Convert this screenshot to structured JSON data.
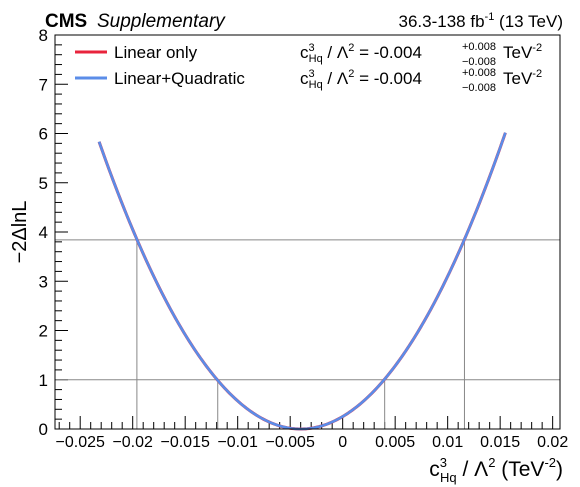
{
  "header": {
    "experiment": "CMS",
    "label": "Supplementary",
    "lumi_prefix": "36.3-138 fb",
    "lumi_exp": "-1",
    "lumi_suffix": "(13 TeV)"
  },
  "legend": {
    "placement": "top-left",
    "entries": [
      {
        "label": "Linear only",
        "color": "#e8243c",
        "result": {
          "coef": "c",
          "sup": "3",
          "sub": "Hq",
          "mid": " / Λ",
          "mid_sup": "2",
          "eq": " = -0.004",
          "up": "+0.008",
          "down": "−0.008",
          "unit": " TeV",
          "unit_sup": "-2"
        }
      },
      {
        "label": "Linear+Quadratic",
        "color": "#5b8de8",
        "result": {
          "coef": "c",
          "sup": "3",
          "sub": "Hq",
          "mid": " / Λ",
          "mid_sup": "2",
          "eq": " = -0.004",
          "up": "+0.008",
          "down": "−0.008",
          "unit": " TeV",
          "unit_sup": "-2"
        }
      }
    ]
  },
  "axes": {
    "ylabel": "−2ΔlnL",
    "xlabel": {
      "coef": "c",
      "sup": "3",
      "sub": "Hq",
      "mid": " / Λ",
      "mid_sup": "2",
      "unit": " (TeV",
      "unit_sup": "-2",
      "close": ")"
    },
    "xticks": [
      "−0.025",
      "−0.02",
      "−0.015",
      "−0.01",
      "−0.005",
      "0",
      "0.005",
      "0.01",
      "0.015",
      "0.02"
    ]
  },
  "chart_data": {
    "type": "line",
    "xlim": [
      -0.0274,
      0.0207
    ],
    "ylim": [
      0,
      8
    ],
    "grid": false,
    "y_major_ticks": [
      0,
      1,
      2,
      3,
      4,
      5,
      6,
      7,
      8
    ],
    "x_major_ticks": [
      -0.025,
      -0.02,
      -0.015,
      -0.01,
      -0.005,
      0,
      0.005,
      0.01,
      0.015,
      0.02
    ],
    "best_fit": -0.004,
    "series": [
      {
        "name": "Linear only",
        "color": "#e8243c",
        "x_range": [
          -0.0232,
          0.0155
        ],
        "center": -0.004,
        "halfwidth_1": 0.00795
      },
      {
        "name": "Linear+Quadratic",
        "color": "#5b8de8",
        "x_range": [
          -0.0232,
          0.0155
        ],
        "center": -0.004,
        "halfwidth_1": 0.00795
      }
    ],
    "reference_lines": [
      {
        "y": 1,
        "x_crossings": [
          -0.0119,
          0.004
        ]
      },
      {
        "y": 3.84,
        "x_crossings": [
          -0.0196,
          0.0116
        ]
      }
    ],
    "line_color": "#888888"
  }
}
